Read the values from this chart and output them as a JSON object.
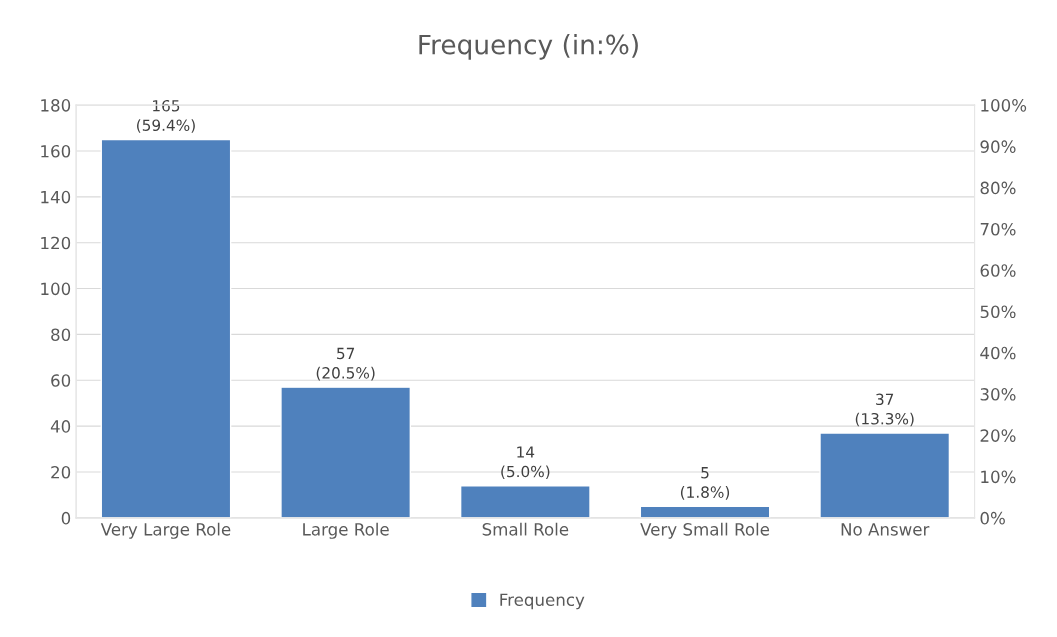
{
  "chart_data": {
    "type": "bar",
    "title": "Frequency (in:%)",
    "categories": [
      "Very Large Role",
      "Large Role",
      "Small Role",
      "Very Small Role",
      "No Answer"
    ],
    "series": [
      {
        "name": "Frequency",
        "color": "#4f81bd",
        "values": [
          165,
          57,
          14,
          5,
          37
        ],
        "value_labels": [
          "165\n(59.4%)",
          "57\n(20.5%)",
          "14\n(5.0%)",
          "5\n(1.8%)",
          "37\n(13.3%)"
        ]
      }
    ],
    "ylim": [
      0,
      180
    ],
    "yticks": [
      0,
      20,
      40,
      60,
      80,
      100,
      120,
      140,
      160,
      180
    ],
    "y2lim": [
      0,
      100
    ],
    "y2ticks": [
      {
        "value": 0,
        "label": "0%"
      },
      {
        "value": 10,
        "label": "10%"
      },
      {
        "value": 20,
        "label": "20%"
      },
      {
        "value": 30,
        "label": "30%"
      },
      {
        "value": 40,
        "label": "40%"
      },
      {
        "value": 50,
        "label": "50%"
      },
      {
        "value": 60,
        "label": "60%"
      },
      {
        "value": 70,
        "label": "70%"
      },
      {
        "value": 80,
        "label": "80%"
      },
      {
        "value": 90,
        "label": "90%"
      },
      {
        "value": 100,
        "label": "100%"
      }
    ],
    "grid": "y",
    "legend": "bottom"
  }
}
